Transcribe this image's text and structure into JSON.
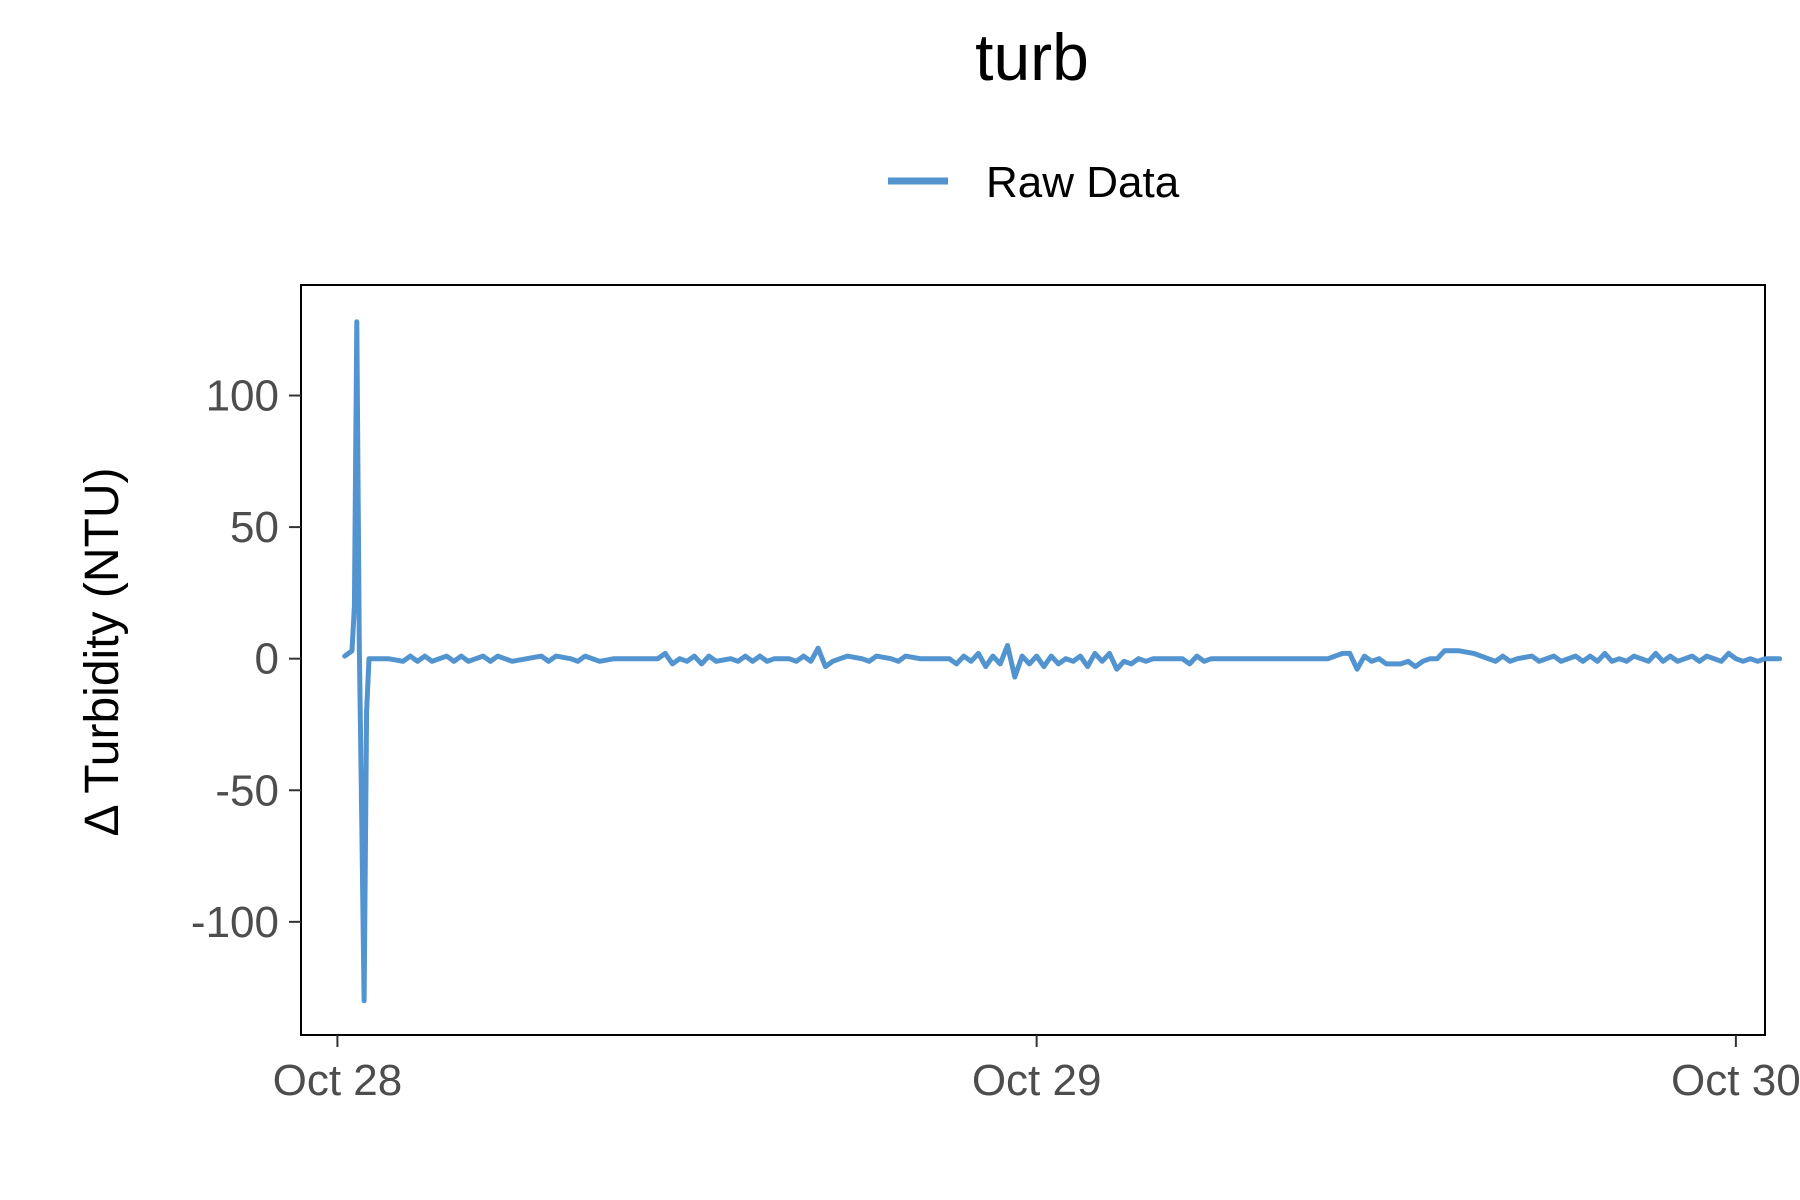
{
  "chart_data": {
    "type": "line",
    "title": "turb",
    "xlabel": "",
    "ylabel": "Δ Turbidity (NTU)",
    "legend": {
      "position": "top",
      "entries": [
        "Raw Data"
      ]
    },
    "grid": false,
    "xlim": [
      "2023-10-27T22:45",
      "2023-10-30T01:00"
    ],
    "ylim": [
      -143,
      142
    ],
    "x_ticks": [
      {
        "value": "2023-10-28T00:00",
        "label": "Oct 28"
      },
      {
        "value": "2023-10-29T00:00",
        "label": "Oct 29"
      },
      {
        "value": "2023-10-30T00:00",
        "label": "Oct 30"
      }
    ],
    "y_ticks": [
      {
        "value": 100,
        "label": "100"
      },
      {
        "value": 50,
        "label": "50"
      },
      {
        "value": 0,
        "label": "0"
      },
      {
        "value": -50,
        "label": "-50"
      },
      {
        "value": -100,
        "label": "-100"
      }
    ],
    "series": [
      {
        "name": "Raw Data",
        "color": "#5294CF",
        "points": [
          [
            "2023-10-28T00:15",
            1
          ],
          [
            "2023-10-28T00:30",
            3
          ],
          [
            "2023-10-28T00:35",
            20
          ],
          [
            "2023-10-28T00:40",
            128
          ],
          [
            "2023-10-28T00:45",
            5
          ],
          [
            "2023-10-28T00:50",
            -60
          ],
          [
            "2023-10-28T00:55",
            -130
          ],
          [
            "2023-10-28T01:00",
            -20
          ],
          [
            "2023-10-28T01:05",
            0
          ],
          [
            "2023-10-28T01:30",
            0
          ],
          [
            "2023-10-28T01:45",
            0
          ],
          [
            "2023-10-28T02:15",
            -1
          ],
          [
            "2023-10-28T02:30",
            1
          ],
          [
            "2023-10-28T02:45",
            -1
          ],
          [
            "2023-10-28T03:00",
            1
          ],
          [
            "2023-10-28T03:15",
            -1
          ],
          [
            "2023-10-28T03:30",
            0
          ],
          [
            "2023-10-28T03:45",
            1
          ],
          [
            "2023-10-28T04:00",
            -1
          ],
          [
            "2023-10-28T04:15",
            1
          ],
          [
            "2023-10-28T04:30",
            -1
          ],
          [
            "2023-10-28T04:45",
            0
          ],
          [
            "2023-10-28T05:00",
            1
          ],
          [
            "2023-10-28T05:15",
            -1
          ],
          [
            "2023-10-28T05:30",
            1
          ],
          [
            "2023-10-28T05:45",
            0
          ],
          [
            "2023-10-28T06:00",
            -1
          ],
          [
            "2023-10-28T06:30",
            0
          ],
          [
            "2023-10-28T07:00",
            1
          ],
          [
            "2023-10-28T07:15",
            -1
          ],
          [
            "2023-10-28T07:30",
            1
          ],
          [
            "2023-10-28T08:00",
            0
          ],
          [
            "2023-10-28T08:15",
            -1
          ],
          [
            "2023-10-28T08:30",
            1
          ],
          [
            "2023-10-28T09:00",
            -1
          ],
          [
            "2023-10-28T09:30",
            0
          ],
          [
            "2023-10-28T10:00",
            0
          ],
          [
            "2023-10-28T10:30",
            0
          ],
          [
            "2023-10-28T11:00",
            0
          ],
          [
            "2023-10-28T11:15",
            2
          ],
          [
            "2023-10-28T11:30",
            -2
          ],
          [
            "2023-10-28T11:45",
            0
          ],
          [
            "2023-10-28T12:00",
            -1
          ],
          [
            "2023-10-28T12:15",
            1
          ],
          [
            "2023-10-28T12:30",
            -2
          ],
          [
            "2023-10-28T12:45",
            1
          ],
          [
            "2023-10-28T13:00",
            -1
          ],
          [
            "2023-10-28T13:30",
            0
          ],
          [
            "2023-10-28T13:45",
            -1
          ],
          [
            "2023-10-28T14:00",
            1
          ],
          [
            "2023-10-28T14:15",
            -1
          ],
          [
            "2023-10-28T14:30",
            1
          ],
          [
            "2023-10-28T14:45",
            -1
          ],
          [
            "2023-10-28T15:00",
            0
          ],
          [
            "2023-10-28T15:30",
            0
          ],
          [
            "2023-10-28T15:45",
            -1
          ],
          [
            "2023-10-28T16:00",
            1
          ],
          [
            "2023-10-28T16:15",
            -1
          ],
          [
            "2023-10-28T16:30",
            4
          ],
          [
            "2023-10-28T16:45",
            -3
          ],
          [
            "2023-10-28T17:00",
            -1
          ],
          [
            "2023-10-28T17:15",
            0
          ],
          [
            "2023-10-28T17:30",
            1
          ],
          [
            "2023-10-28T18:00",
            0
          ],
          [
            "2023-10-28T18:15",
            -1
          ],
          [
            "2023-10-28T18:30",
            1
          ],
          [
            "2023-10-28T19:00",
            0
          ],
          [
            "2023-10-28T19:15",
            -1
          ],
          [
            "2023-10-28T19:30",
            1
          ],
          [
            "2023-10-28T20:00",
            0
          ],
          [
            "2023-10-28T20:30",
            0
          ],
          [
            "2023-10-28T21:00",
            0
          ],
          [
            "2023-10-28T21:15",
            -2
          ],
          [
            "2023-10-28T21:30",
            1
          ],
          [
            "2023-10-28T21:45",
            -1
          ],
          [
            "2023-10-28T22:00",
            2
          ],
          [
            "2023-10-28T22:15",
            -3
          ],
          [
            "2023-10-28T22:30",
            1
          ],
          [
            "2023-10-28T22:45",
            -2
          ],
          [
            "2023-10-28T23:00",
            5
          ],
          [
            "2023-10-28T23:15",
            -7
          ],
          [
            "2023-10-28T23:30",
            1
          ],
          [
            "2023-10-28T23:45",
            -2
          ],
          [
            "2023-10-29T00:00",
            1
          ],
          [
            "2023-10-29T00:15",
            -3
          ],
          [
            "2023-10-29T00:30",
            1
          ],
          [
            "2023-10-29T00:45",
            -2
          ],
          [
            "2023-10-29T01:00",
            0
          ],
          [
            "2023-10-29T01:15",
            -1
          ],
          [
            "2023-10-29T01:30",
            1
          ],
          [
            "2023-10-29T01:45",
            -3
          ],
          [
            "2023-10-29T02:00",
            2
          ],
          [
            "2023-10-29T02:15",
            -1
          ],
          [
            "2023-10-29T02:30",
            2
          ],
          [
            "2023-10-29T02:45",
            -4
          ],
          [
            "2023-10-29T03:00",
            -1
          ],
          [
            "2023-10-29T03:15",
            -2
          ],
          [
            "2023-10-29T03:30",
            0
          ],
          [
            "2023-10-29T03:45",
            -1
          ],
          [
            "2023-10-29T04:00",
            0
          ],
          [
            "2023-10-29T04:30",
            0
          ],
          [
            "2023-10-29T05:00",
            0
          ],
          [
            "2023-10-29T05:15",
            -2
          ],
          [
            "2023-10-29T05:30",
            1
          ],
          [
            "2023-10-29T05:45",
            -1
          ],
          [
            "2023-10-29T06:00",
            0
          ],
          [
            "2023-10-29T06:30",
            0
          ],
          [
            "2023-10-29T07:00",
            0
          ],
          [
            "2023-10-29T07:30",
            0
          ],
          [
            "2023-10-29T08:00",
            0
          ],
          [
            "2023-10-29T08:30",
            0
          ],
          [
            "2023-10-29T09:00",
            0
          ],
          [
            "2023-10-29T09:30",
            0
          ],
          [
            "2023-10-29T10:00",
            0
          ],
          [
            "2023-10-29T10:30",
            2
          ],
          [
            "2023-10-29T10:45",
            2
          ],
          [
            "2023-10-29T11:00",
            -4
          ],
          [
            "2023-10-29T11:15",
            1
          ],
          [
            "2023-10-29T11:30",
            -1
          ],
          [
            "2023-10-29T11:45",
            0
          ],
          [
            "2023-10-29T12:00",
            -2
          ],
          [
            "2023-10-29T12:30",
            -2
          ],
          [
            "2023-10-29T12:45",
            -1
          ],
          [
            "2023-10-29T13:00",
            -3
          ],
          [
            "2023-10-29T13:15",
            -1
          ],
          [
            "2023-10-29T13:30",
            0
          ],
          [
            "2023-10-29T13:45",
            0
          ],
          [
            "2023-10-29T14:00",
            3
          ],
          [
            "2023-10-29T14:30",
            3
          ],
          [
            "2023-10-29T15:00",
            2
          ],
          [
            "2023-10-29T15:30",
            0
          ],
          [
            "2023-10-29T15:45",
            -1
          ],
          [
            "2023-10-29T16:00",
            1
          ],
          [
            "2023-10-29T16:15",
            -1
          ],
          [
            "2023-10-29T16:30",
            0
          ],
          [
            "2023-10-29T17:00",
            1
          ],
          [
            "2023-10-29T17:15",
            -1
          ],
          [
            "2023-10-29T17:30",
            0
          ],
          [
            "2023-10-29T17:45",
            1
          ],
          [
            "2023-10-29T18:00",
            -1
          ],
          [
            "2023-10-29T18:15",
            0
          ],
          [
            "2023-10-29T18:30",
            1
          ],
          [
            "2023-10-29T18:45",
            -1
          ],
          [
            "2023-10-29T19:00",
            1
          ],
          [
            "2023-10-29T19:15",
            -1
          ],
          [
            "2023-10-29T19:30",
            2
          ],
          [
            "2023-10-29T19:45",
            -1
          ],
          [
            "2023-10-29T20:00",
            0
          ],
          [
            "2023-10-29T20:15",
            -1
          ],
          [
            "2023-10-29T20:30",
            1
          ],
          [
            "2023-10-29T20:45",
            0
          ],
          [
            "2023-10-29T21:00",
            -1
          ],
          [
            "2023-10-29T21:15",
            2
          ],
          [
            "2023-10-29T21:30",
            -1
          ],
          [
            "2023-10-29T21:45",
            1
          ],
          [
            "2023-10-29T22:00",
            -1
          ],
          [
            "2023-10-29T22:15",
            0
          ],
          [
            "2023-10-29T22:30",
            1
          ],
          [
            "2023-10-29T22:45",
            -1
          ],
          [
            "2023-10-29T23:00",
            1
          ],
          [
            "2023-10-29T23:15",
            0
          ],
          [
            "2023-10-29T23:30",
            -1
          ],
          [
            "2023-10-29T23:45",
            2
          ],
          [
            "2023-10-30T00:00",
            0
          ],
          [
            "2023-10-30T00:15",
            -1
          ],
          [
            "2023-10-30T00:30",
            0
          ],
          [
            "2023-10-30T00:45",
            -1
          ],
          [
            "2023-10-30T01:00",
            0
          ],
          [
            "2023-10-30T01:15",
            0
          ],
          [
            "2023-10-30T01:30",
            0
          ]
        ]
      }
    ]
  }
}
